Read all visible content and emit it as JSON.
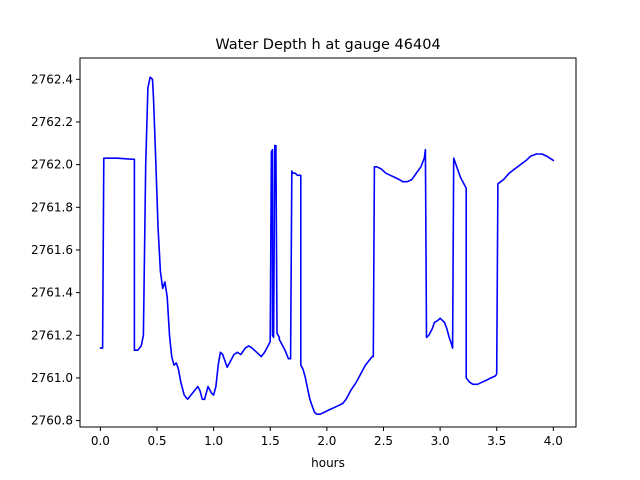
{
  "chart_data": {
    "type": "line",
    "title": "Water Depth h at gauge 46404",
    "xlabel": "hours",
    "ylabel": "",
    "xlim": [
      -0.18,
      4.2
    ],
    "ylim": [
      2760.77,
      2762.5
    ],
    "xticks": [
      0.0,
      0.5,
      1.0,
      1.5,
      2.0,
      2.5,
      3.0,
      3.5,
      4.0
    ],
    "xtick_labels": [
      "0.0",
      "0.5",
      "1.0",
      "1.5",
      "2.0",
      "2.5",
      "3.0",
      "3.5",
      "4.0"
    ],
    "yticks": [
      2760.8,
      2761.0,
      2761.2,
      2761.4,
      2761.6,
      2761.8,
      2762.0,
      2762.2,
      2762.4
    ],
    "ytick_labels": [
      "2760.8",
      "2761.0",
      "2761.2",
      "2761.4",
      "2761.6",
      "2761.8",
      "2762.0",
      "2762.2",
      "2762.4"
    ],
    "grid": false,
    "series": [
      {
        "color": "#0000ff",
        "x": [
          0.0,
          0.02,
          0.03,
          0.03,
          0.15,
          0.29,
          0.3,
          0.3,
          0.33,
          0.36,
          0.38,
          0.4,
          0.42,
          0.44,
          0.46,
          0.47,
          0.49,
          0.51,
          0.53,
          0.55,
          0.57,
          0.59,
          0.61,
          0.63,
          0.65,
          0.67,
          0.69,
          0.71,
          0.74,
          0.77,
          0.8,
          0.83,
          0.86,
          0.88,
          0.9,
          0.92,
          0.95,
          0.98,
          1.0,
          1.02,
          1.04,
          1.06,
          1.08,
          1.1,
          1.12,
          1.15,
          1.18,
          1.21,
          1.24,
          1.28,
          1.31,
          1.34,
          1.38,
          1.42,
          1.45,
          1.48,
          1.5,
          1.51,
          1.52,
          1.52,
          1.53,
          1.54,
          1.55,
          1.56,
          1.57,
          1.58,
          1.58,
          1.6,
          1.63,
          1.66,
          1.68,
          1.69,
          1.7,
          1.72,
          1.74,
          1.76,
          1.77,
          1.77,
          1.79,
          1.81,
          1.83,
          1.85,
          1.87,
          1.89,
          1.91,
          1.94,
          1.98,
          2.02,
          2.06,
          2.1,
          2.14,
          2.17,
          2.21,
          2.26,
          2.3,
          2.34,
          2.37,
          2.4,
          2.41,
          2.42,
          2.44,
          2.48,
          2.52,
          2.56,
          2.6,
          2.64,
          2.67,
          2.71,
          2.75,
          2.79,
          2.83,
          2.86,
          2.87,
          2.88,
          2.9,
          2.93,
          2.95,
          2.98,
          3.0,
          3.02,
          3.04,
          3.06,
          3.08,
          3.1,
          3.11,
          3.12,
          3.14,
          3.16,
          3.18,
          3.2,
          3.22,
          3.23,
          3.23,
          3.26,
          3.29,
          3.33,
          3.37,
          3.41,
          3.45,
          3.49,
          3.5,
          3.51,
          3.56,
          3.61,
          3.66,
          3.71,
          3.76,
          3.8,
          3.85,
          3.9,
          3.94,
          4.0
        ],
        "y": [
          2761.14,
          2761.14,
          2762.03,
          2762.03,
          2762.03,
          2762.025,
          2762.025,
          2761.13,
          2761.13,
          2761.15,
          2761.2,
          2762.0,
          2762.36,
          2762.41,
          2762.4,
          2762.3,
          2762.0,
          2761.7,
          2761.5,
          2761.42,
          2761.45,
          2761.38,
          2761.2,
          2761.1,
          2761.06,
          2761.07,
          2761.04,
          2760.98,
          2760.92,
          2760.9,
          2760.92,
          2760.94,
          2760.96,
          2760.94,
          2760.9,
          2760.9,
          2760.96,
          2760.93,
          2760.92,
          2760.96,
          2761.06,
          2761.12,
          2761.11,
          2761.08,
          2761.05,
          2761.08,
          2761.11,
          2761.12,
          2761.11,
          2761.14,
          2761.15,
          2761.14,
          2761.12,
          2761.1,
          2761.12,
          2761.15,
          2761.17,
          2762.06,
          2762.07,
          2761.2,
          2761.19,
          2762.09,
          2762.09,
          2761.21,
          2761.2,
          2761.19,
          2761.18,
          2761.16,
          2761.13,
          2761.09,
          2761.09,
          2761.97,
          2761.96,
          2761.96,
          2761.95,
          2761.95,
          2761.95,
          2761.06,
          2761.04,
          2761.0,
          2760.95,
          2760.9,
          2760.87,
          2760.84,
          2760.83,
          2760.83,
          2760.84,
          2760.85,
          2760.86,
          2760.87,
          2760.88,
          2760.9,
          2760.94,
          2760.98,
          2761.02,
          2761.06,
          2761.08,
          2761.1,
          2761.1,
          2761.99,
          2761.99,
          2761.98,
          2761.96,
          2761.95,
          2761.94,
          2761.93,
          2761.92,
          2761.92,
          2761.93,
          2761.96,
          2761.99,
          2762.03,
          2762.07,
          2761.19,
          2761.2,
          2761.23,
          2761.26,
          2761.27,
          2761.28,
          2761.27,
          2761.26,
          2761.23,
          2761.19,
          2761.16,
          2761.14,
          2762.03,
          2762.0,
          2761.97,
          2761.94,
          2761.92,
          2761.9,
          2761.89,
          2761.0,
          2760.98,
          2760.97,
          2760.97,
          2760.98,
          2760.99,
          2761.0,
          2761.01,
          2761.02,
          2761.91,
          2761.93,
          2761.96,
          2761.98,
          2762.0,
          2762.02,
          2762.04,
          2762.05,
          2762.05,
          2762.04,
          2762.02
        ]
      }
    ]
  }
}
